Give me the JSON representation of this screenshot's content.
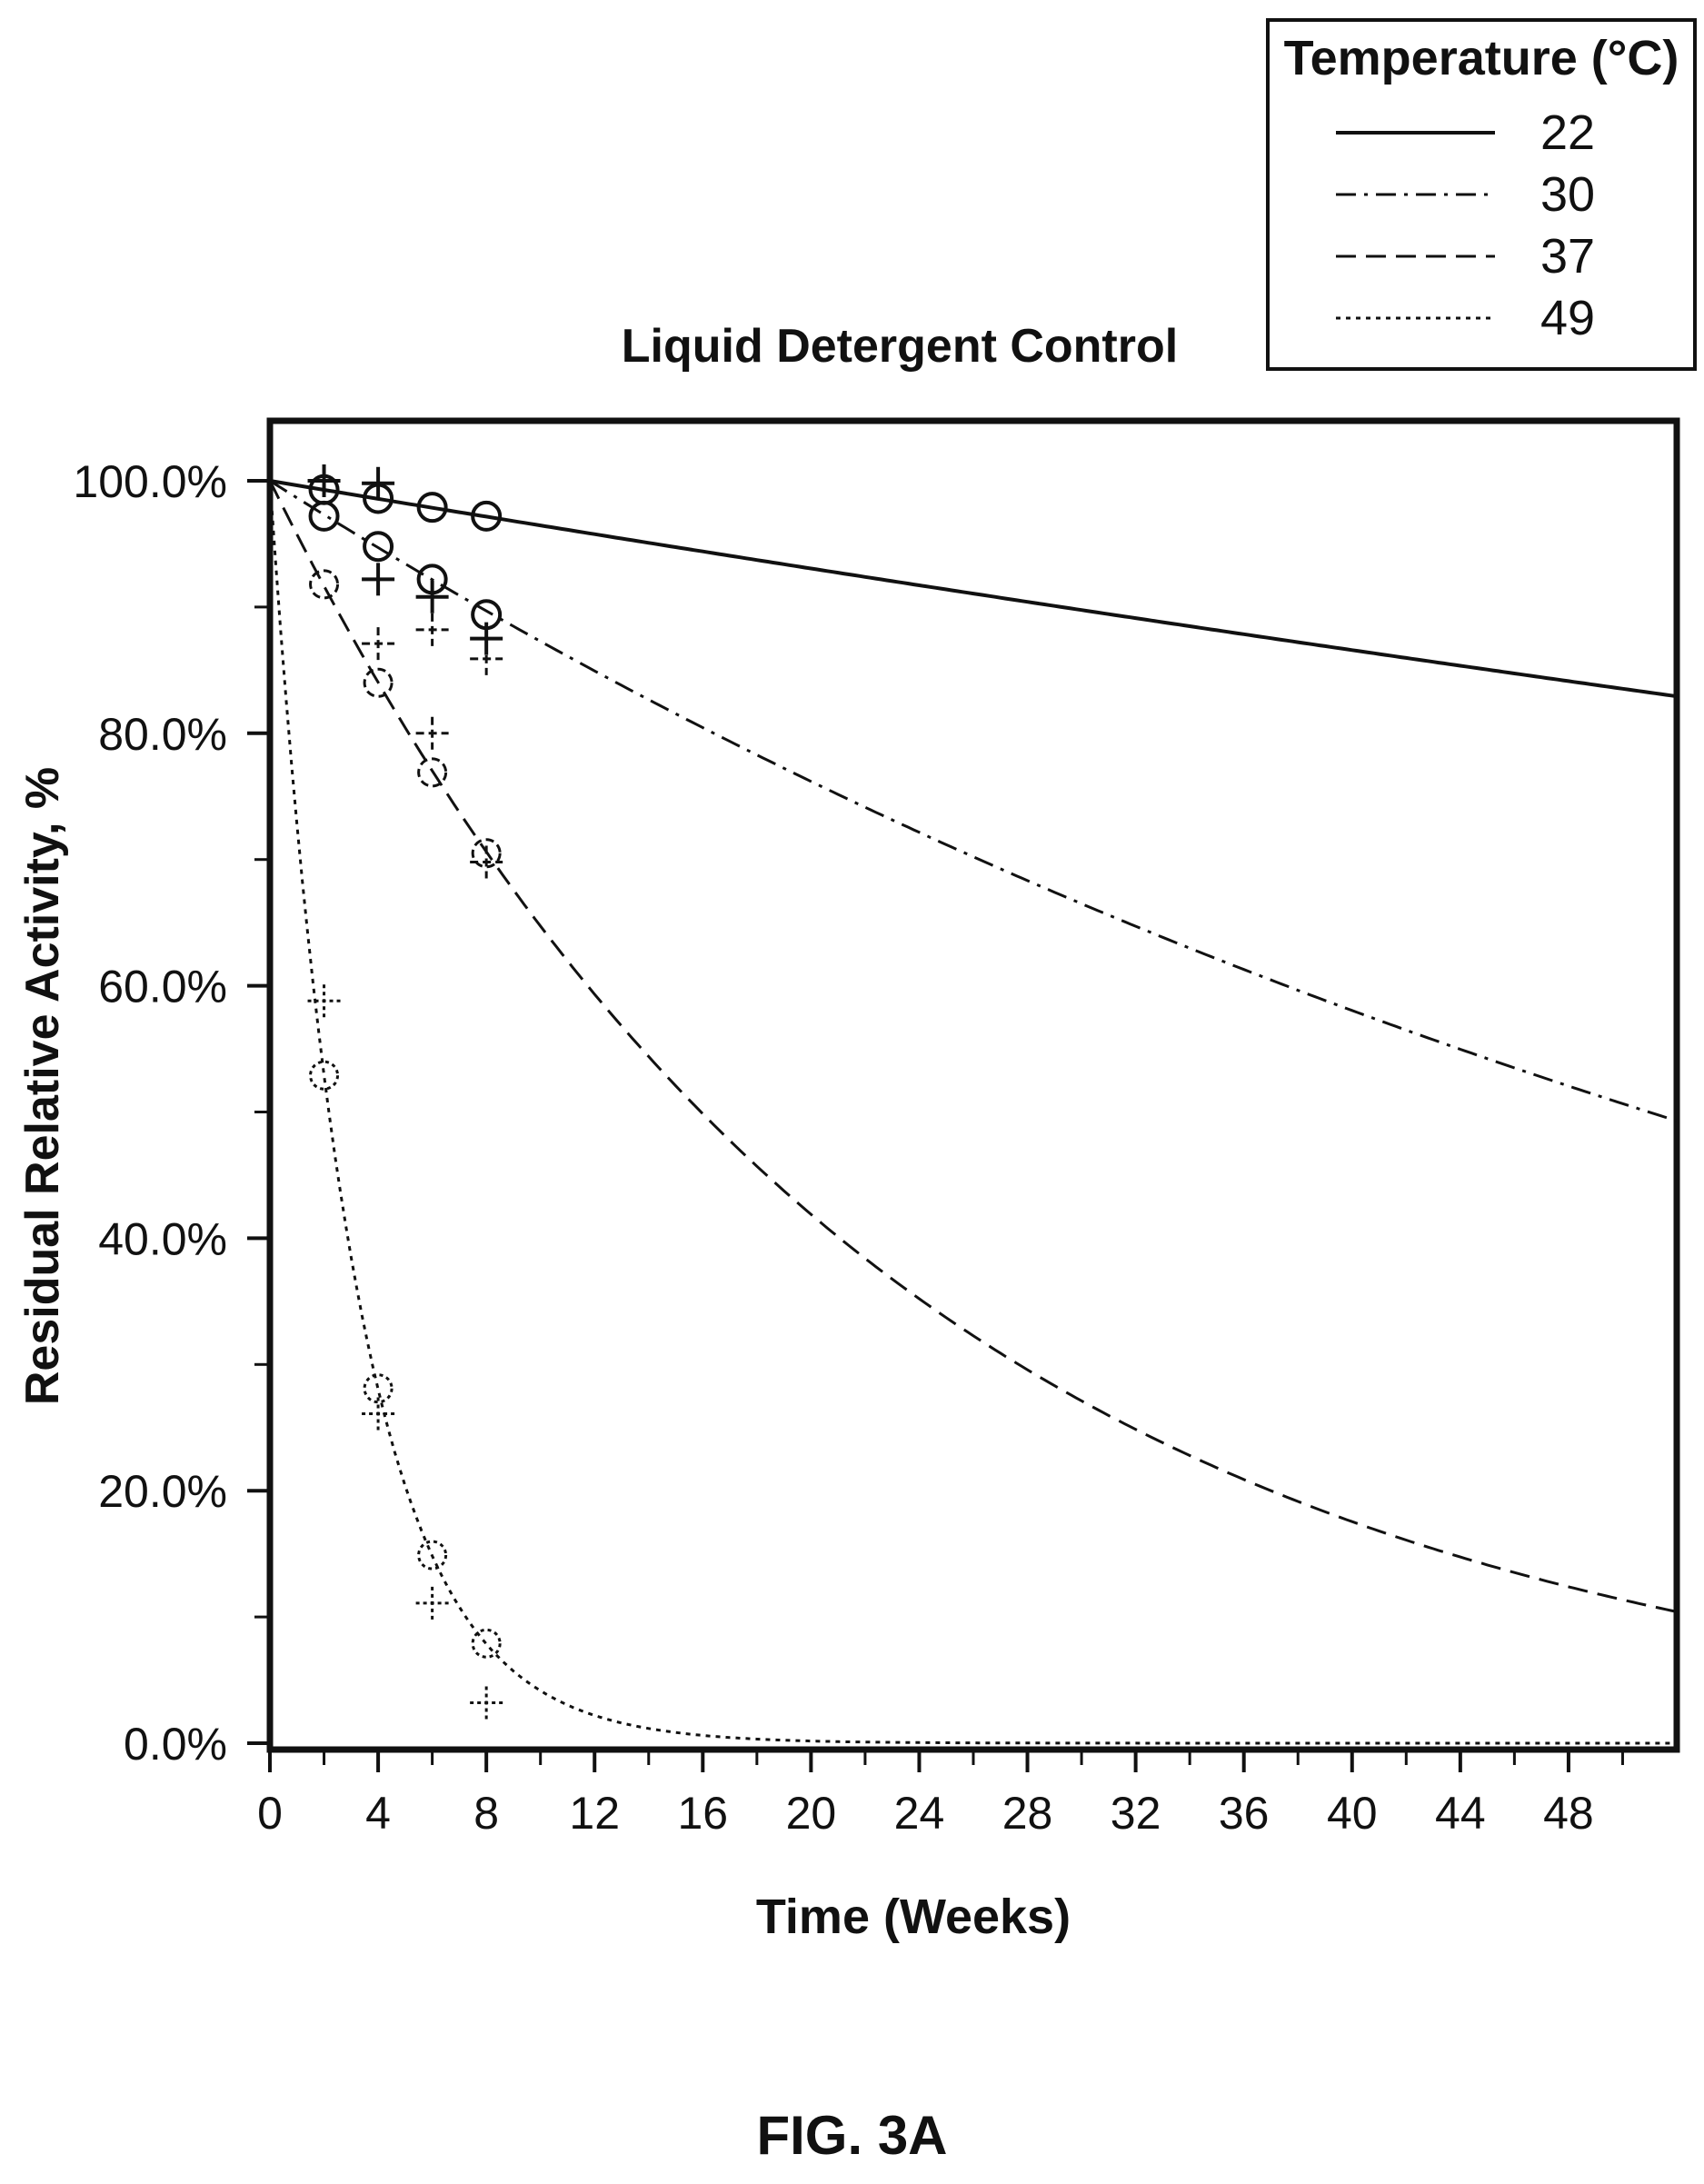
{
  "figure_label": "FIG. 3A",
  "chart_data": {
    "type": "line",
    "title": "Liquid Detergent Control",
    "xlabel": "Time (Weeks)",
    "ylabel": "Residual Relative Activity, %",
    "xlim": [
      0,
      52
    ],
    "ylim": [
      0,
      100
    ],
    "x_ticks": [
      0,
      4,
      8,
      12,
      16,
      20,
      24,
      28,
      32,
      36,
      40,
      44,
      48
    ],
    "x_tick_labels": [
      "0",
      "4",
      "8",
      "12",
      "16",
      "20",
      "24",
      "28",
      "32",
      "36",
      "40",
      "44",
      "48"
    ],
    "y_ticks": [
      0,
      20,
      40,
      60,
      80,
      100
    ],
    "y_tick_labels": [
      "0.0%",
      "20.0%",
      "40.0%",
      "60.0%",
      "80.0%",
      "100.0%"
    ],
    "grid": false,
    "legend": {
      "title": "Temperature (°C)",
      "position": "top-right outside plot"
    },
    "series": [
      {
        "name": "22",
        "line_style": "solid",
        "fit": {
          "model": "exponential decay",
          "start": 100,
          "rate_per_week": 0.0036
        },
        "circles": [
          [
            2,
            99.3
          ],
          [
            4,
            98.6
          ],
          [
            6,
            97.9
          ],
          [
            8,
            97.2
          ]
        ],
        "crosses": [
          [
            2,
            100.0
          ],
          [
            4,
            99.8
          ]
        ]
      },
      {
        "name": "30",
        "line_style": "dash-dot",
        "fit": {
          "model": "exponential decay",
          "start": 100,
          "rate_per_week": 0.0136
        },
        "circles": [
          [
            2,
            97.2
          ],
          [
            4,
            94.8
          ],
          [
            6,
            92.2
          ],
          [
            8,
            89.4
          ]
        ],
        "crosses": [
          [
            4,
            92.2
          ],
          [
            6,
            90.8
          ],
          [
            8,
            87.5
          ]
        ]
      },
      {
        "name": "37",
        "line_style": "dashed",
        "fit": {
          "model": "exponential decay",
          "start": 100,
          "rate_per_week": 0.0435
        },
        "circles": [
          [
            2,
            91.8
          ],
          [
            4,
            84.0
          ],
          [
            6,
            76.9
          ],
          [
            8,
            70.5
          ]
        ],
        "crosses": [
          [
            4,
            87.1
          ],
          [
            6,
            88.2
          ],
          [
            6,
            80.0
          ],
          [
            8,
            85.9
          ],
          [
            8,
            69.8
          ]
        ]
      },
      {
        "name": "49",
        "line_style": "dotted",
        "fit": {
          "model": "exponential decay",
          "start": 100,
          "rate_per_week": 0.318
        },
        "circles": [
          [
            2,
            52.9
          ],
          [
            4,
            28.1
          ],
          [
            6,
            14.9
          ],
          [
            8,
            7.9
          ]
        ],
        "crosses": [
          [
            2,
            58.8
          ],
          [
            4,
            26.1
          ],
          [
            6,
            11.1
          ],
          [
            8,
            3.2
          ]
        ]
      }
    ]
  }
}
